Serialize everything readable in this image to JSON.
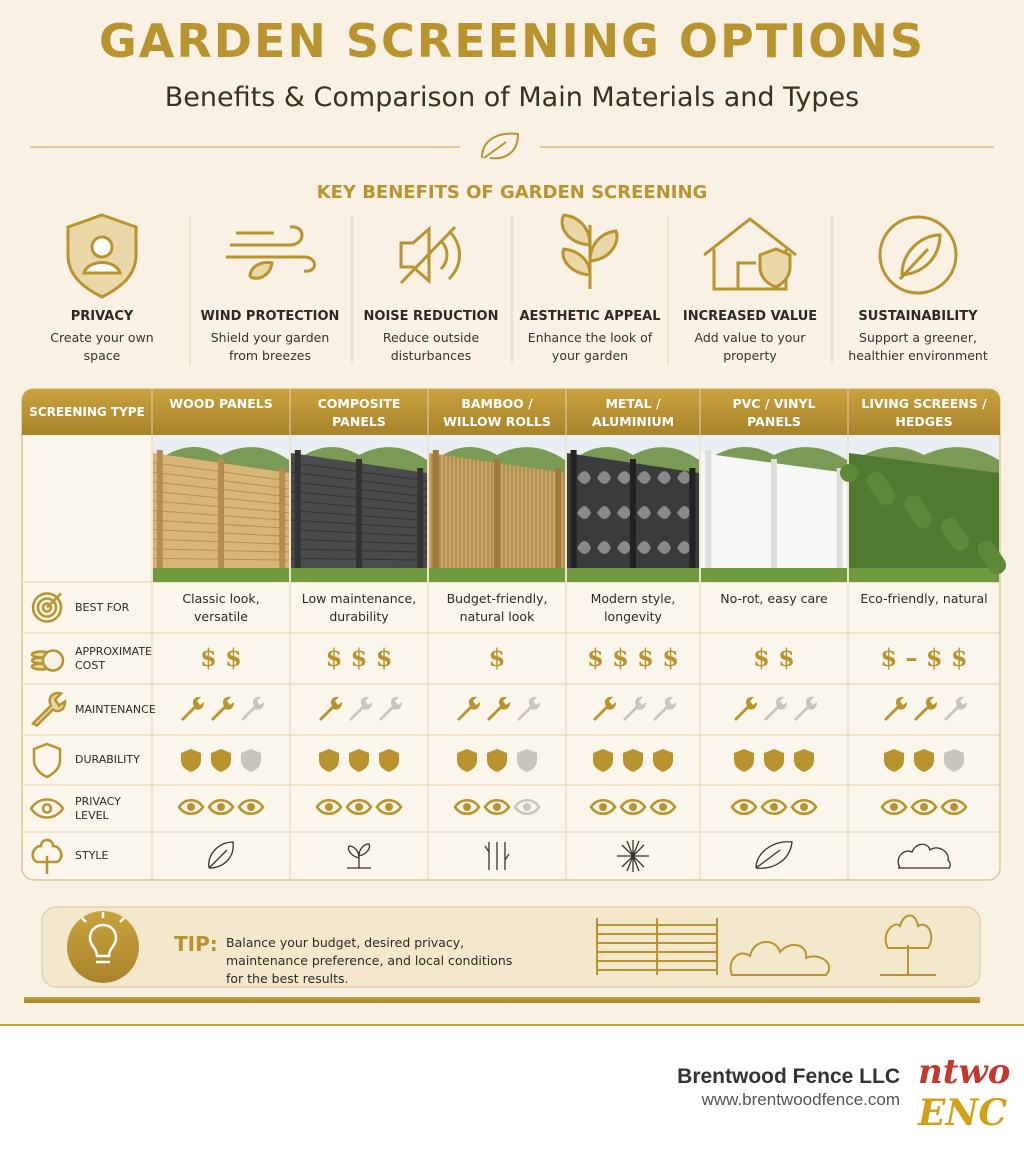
{
  "header": {
    "title": "GARDEN SCREENING OPTIONS",
    "subtitle": "Benefits & Comparison of Main Materials and Types"
  },
  "benefits": {
    "heading": "KEY BENEFITS OF GARDEN SCREENING",
    "items": [
      {
        "title": "PRIVACY",
        "description": "Create your own space"
      },
      {
        "title": "WIND PROTECTION",
        "description": "Shield your garden from breezes"
      },
      {
        "title": "NOISE REDUCTION",
        "description": "Reduce outside disturbances"
      },
      {
        "title": "AESTHETIC APPEAL",
        "description": "Enhance the look of your garden"
      },
      {
        "title": "INCREASED VALUE",
        "description": "Add value to your property"
      },
      {
        "title": "SUSTAINABILITY",
        "description": "Support a greener, healthier environment"
      }
    ]
  },
  "table": {
    "header_label": "SCREENING TYPE",
    "row_labels": [
      "BEST FOR",
      "APPROXIMATE COST",
      "MAINTENANCE",
      "DURABILITY",
      "PRIVACY LEVEL",
      "STYLE"
    ],
    "rating_scale": 3,
    "columns": [
      {
        "name": "WOOD PANELS",
        "best_for": "Classic look, versatile",
        "cost": "$ $",
        "maintenance": 2,
        "durability": 2,
        "privacy": 3
      },
      {
        "name": "COMPOSITE PANELS",
        "best_for": "Low maintenance, durability",
        "cost": "$ $ $",
        "maintenance": 1,
        "durability": 3,
        "privacy": 3
      },
      {
        "name": "BAMBOO / WILLOW ROLLS",
        "best_for": "Budget-friendly, natural look",
        "cost": "$",
        "maintenance": 2,
        "durability": 2,
        "privacy": 2
      },
      {
        "name": "METAL / ALUMINIUM",
        "best_for": "Modern style, longevity",
        "cost": "$ $ $ $",
        "maintenance": 1,
        "durability": 3,
        "privacy": 3
      },
      {
        "name": "PVC / VINYL PANELS",
        "best_for": "No-rot, easy care",
        "cost": "$ $",
        "maintenance": 1,
        "durability": 3,
        "privacy": 3
      },
      {
        "name": "LIVING SCREENS / HEDGES",
        "best_for": "Eco-friendly, natural",
        "cost": "$ – $ $",
        "maintenance": 2,
        "durability": 2,
        "privacy": 3
      }
    ]
  },
  "tip": {
    "label": "TIP:",
    "text": "Balance your budget, desired privacy, maintenance preference, and local conditions for the best results."
  },
  "footer": {
    "company": "Brentwood Fence LLC",
    "website": "www.brentwoodfence.com",
    "logo_lines": [
      "ntwo",
      "ENC"
    ]
  }
}
